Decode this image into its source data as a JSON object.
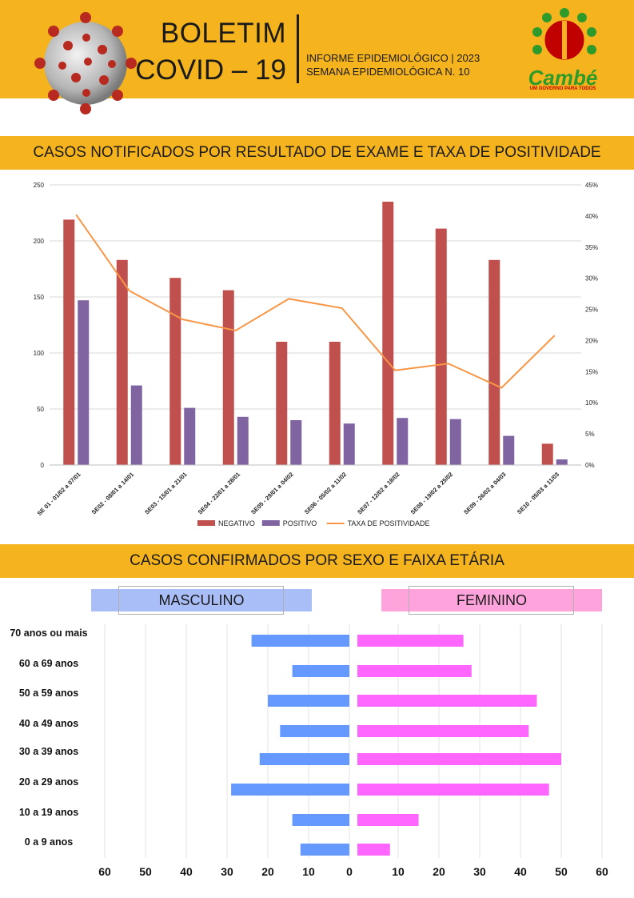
{
  "header": {
    "title_line1": "BOLETIM",
    "title_line2": "COVID – 19",
    "info_line1": "INFORME EPIDEMIOLÓGICO | 2023",
    "info_line2": "SEMANA EPIDEMIOLÓGICA  N. 10",
    "logo_name": "Cambé",
    "logo_tagline": "UM GOVERNO PARA TODOS",
    "colors": {
      "accent": "#f5b41d",
      "logo_green": "#2e9a2a",
      "logo_red": "#c00000"
    }
  },
  "section1": {
    "title": "CASOS NOTIFICADOS POR RESULTADO DE EXAME E TAXA DE POSITIVIDADE"
  },
  "section2": {
    "title": "CASOS CONFIRMADOS POR SEXO E FAIXA ETÁRIA",
    "male_label": "MASCULINO",
    "female_label": "FEMININO"
  },
  "chart_data": [
    {
      "type": "bar",
      "title": "CASOS NOTIFICADOS POR RESULTADO DE EXAME E TAXA DE POSITIVIDADE",
      "categories": [
        "SE 01 - 01/02 a 07/01",
        "SE02 - 08/01 a 14/01",
        "SE03 - 15/01 a 21/01",
        "SE04 - 22/01 a 28/01",
        "SE05 - 29/01 a 04/02",
        "SE06 - 05/02 a 11/02",
        "SE07 - 12/02 a 18/02",
        "SE08 - 19/02 a 25/02",
        "SE09 - 26/02 a 04/03",
        "SE10 - 05/03 a 11/03"
      ],
      "series": [
        {
          "name": "NEGATIVO",
          "type": "bar",
          "color": "#c0504d",
          "values": [
            219,
            183,
            167,
            156,
            110,
            110,
            235,
            211,
            183,
            19
          ]
        },
        {
          "name": "POSITIVO",
          "type": "bar",
          "color": "#8064a2",
          "values": [
            147,
            71,
            51,
            43,
            40,
            37,
            42,
            41,
            26,
            5
          ]
        },
        {
          "name": "TAXA DE POSITIVIDADE",
          "type": "line",
          "axis": "right",
          "color": "#f79646",
          "values": [
            40.2,
            28.0,
            23.4,
            21.6,
            26.7,
            25.2,
            15.2,
            16.3,
            12.4,
            20.8
          ]
        }
      ],
      "ylim": [
        0,
        250
      ],
      "yticks": [
        "0",
        "50",
        "100",
        "150",
        "200",
        "250"
      ],
      "y2lim": [
        0,
        45
      ],
      "y2ticks": [
        "0%",
        "5%",
        "10%",
        "15%",
        "20%",
        "25%",
        "30%",
        "35%",
        "40%",
        "45%"
      ],
      "legend_position": "bottom"
    },
    {
      "type": "bar",
      "orientation": "horizontal",
      "title": "CASOS CONFIRMADOS POR SEXO E FAIXA ETÁRIA",
      "categories": [
        "70 anos ou mais",
        "60 a 69 anos",
        "50 a 59 anos",
        "40 a 49 anos",
        "30 a 39 anos",
        "20 a 29 anos",
        "10 a 19 anos",
        "0 a 9 anos"
      ],
      "series": [
        {
          "name": "MASCULINO",
          "color": "#6699ff",
          "values": [
            24,
            14,
            20,
            17,
            22,
            29,
            14,
            12
          ]
        },
        {
          "name": "FEMININO",
          "color": "#ff66ff",
          "values": [
            26,
            28,
            44,
            42,
            50,
            47,
            15,
            8
          ]
        }
      ],
      "xlim": [
        0,
        60
      ],
      "xticks": [
        "60",
        "50",
        "40",
        "30",
        "20",
        "10",
        "0",
        "10",
        "20",
        "30",
        "40",
        "50",
        "60"
      ]
    }
  ]
}
